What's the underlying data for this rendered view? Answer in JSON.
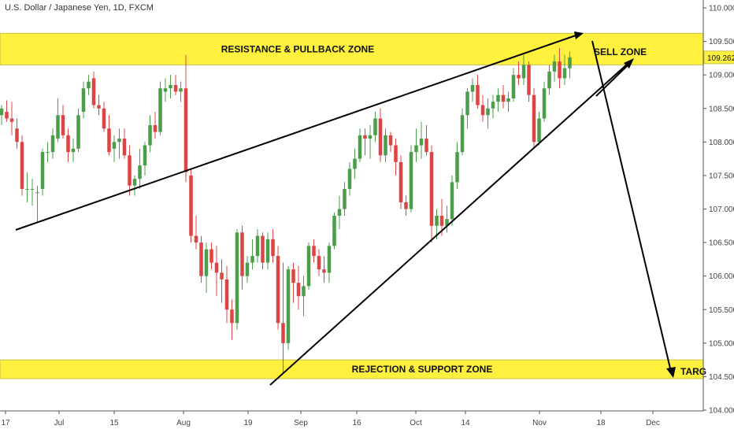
{
  "title": "U.S. Dollar / Japanese Yen, 1D, FXCM",
  "colors": {
    "up": "#4a9e4a",
    "down": "#dd4444",
    "zone": "#fff13d",
    "zone_border": "#c8c04a",
    "line": "#000000",
    "axis": "#555555"
  },
  "annotations": {
    "resistance_zone": "RESISTANCE & PULLBACK ZONE",
    "support_zone": "REJECTION & SUPPORT ZONE",
    "sell_zone": "SELL ZONE",
    "target": "TARG"
  },
  "price_tag": "109.262",
  "chart_data": {
    "type": "candlestick",
    "y_axis_ticks": [
      "110.000",
      "109.500",
      "109.000",
      "108.500",
      "108.000",
      "107.500",
      "107.000",
      "106.500",
      "106.000",
      "105.500",
      "105.000",
      "104.500",
      "104.000"
    ],
    "x_axis_ticks": [
      "17",
      "Jul",
      "15",
      "Aug",
      "19",
      "Sep",
      "16",
      "Oct",
      "14",
      "Nov",
      "18",
      "Dec"
    ],
    "ylim": [
      104.0,
      110.1
    ],
    "zones": {
      "resistance": [
        109.15,
        109.62
      ],
      "support": [
        104.47,
        104.75
      ]
    },
    "last_price": 109.262,
    "candles": [
      [
        108.4,
        108.55,
        108.25,
        108.5
      ],
      [
        108.45,
        108.62,
        108.3,
        108.35
      ],
      [
        108.35,
        108.6,
        108.1,
        108.3
      ],
      [
        108.2,
        108.35,
        107.9,
        108.0
      ],
      [
        108.0,
        108.1,
        107.2,
        107.3
      ],
      [
        107.3,
        107.55,
        107.1,
        107.3
      ],
      [
        107.3,
        107.45,
        107.05,
        107.3
      ],
      [
        107.25,
        107.35,
        106.8,
        107.25
      ],
      [
        107.3,
        107.9,
        107.2,
        107.85
      ],
      [
        107.85,
        108.0,
        107.7,
        107.85
      ],
      [
        107.85,
        108.2,
        107.75,
        108.1
      ],
      [
        108.05,
        108.65,
        108.0,
        108.4
      ],
      [
        108.4,
        108.55,
        108.05,
        108.1
      ],
      [
        108.1,
        108.2,
        107.7,
        107.85
      ],
      [
        107.85,
        108.05,
        107.7,
        107.9
      ],
      [
        107.9,
        108.5,
        107.85,
        108.4
      ],
      [
        108.45,
        108.9,
        108.35,
        108.8
      ],
      [
        108.8,
        109.0,
        108.7,
        108.9
      ],
      [
        108.95,
        109.05,
        108.5,
        108.55
      ],
      [
        108.55,
        108.7,
        108.4,
        108.5
      ],
      [
        108.5,
        108.6,
        108.15,
        108.2
      ],
      [
        108.2,
        108.4,
        107.8,
        107.85
      ],
      [
        107.9,
        108.1,
        107.7,
        108.0
      ],
      [
        108.0,
        108.2,
        107.75,
        108.05
      ],
      [
        108.05,
        108.2,
        107.75,
        107.8
      ],
      [
        107.8,
        107.95,
        107.2,
        107.35
      ],
      [
        107.35,
        107.5,
        107.2,
        107.45
      ],
      [
        107.45,
        107.9,
        107.3,
        107.65
      ],
      [
        107.65,
        108.0,
        107.5,
        107.95
      ],
      [
        107.95,
        108.4,
        107.85,
        108.25
      ],
      [
        108.25,
        108.45,
        108.05,
        108.15
      ],
      [
        108.15,
        108.9,
        108.1,
        108.8
      ],
      [
        108.75,
        108.95,
        108.6,
        108.8
      ],
      [
        108.8,
        109.0,
        108.65,
        108.85
      ],
      [
        108.85,
        109.0,
        108.7,
        108.75
      ],
      [
        108.75,
        108.9,
        108.6,
        108.8
      ],
      [
        108.8,
        109.3,
        107.4,
        107.55
      ],
      [
        107.5,
        107.6,
        106.5,
        106.6
      ],
      [
        106.6,
        106.9,
        106.4,
        106.5
      ],
      [
        106.5,
        106.6,
        105.9,
        106.0
      ],
      [
        106.0,
        106.5,
        105.75,
        106.4
      ],
      [
        106.4,
        106.5,
        106.1,
        106.2
      ],
      [
        106.2,
        106.45,
        105.7,
        106.05
      ],
      [
        106.05,
        106.25,
        105.6,
        105.95
      ],
      [
        105.95,
        106.15,
        105.3,
        105.5
      ],
      [
        105.5,
        105.65,
        105.05,
        105.3
      ],
      [
        105.3,
        106.7,
        105.2,
        106.65
      ],
      [
        106.65,
        106.75,
        105.8,
        106.0
      ],
      [
        106.0,
        106.3,
        105.9,
        106.2
      ],
      [
        106.2,
        106.55,
        106.1,
        106.3
      ],
      [
        106.3,
        106.7,
        106.2,
        106.6
      ],
      [
        106.6,
        106.65,
        106.1,
        106.2
      ],
      [
        106.2,
        106.65,
        106.1,
        106.55
      ],
      [
        106.55,
        106.7,
        106.2,
        106.3
      ],
      [
        106.3,
        106.45,
        105.2,
        105.3
      ],
      [
        105.3,
        106.2,
        104.55,
        105.0
      ],
      [
        105.0,
        106.15,
        104.9,
        106.1
      ],
      [
        106.1,
        106.2,
        105.6,
        105.9
      ],
      [
        105.9,
        106.15,
        105.5,
        105.7
      ],
      [
        105.7,
        106.0,
        105.4,
        105.85
      ],
      [
        105.85,
        106.5,
        105.8,
        106.45
      ],
      [
        106.45,
        106.55,
        106.2,
        106.3
      ],
      [
        106.3,
        106.4,
        106.0,
        106.1
      ],
      [
        106.1,
        106.3,
        105.9,
        106.05
      ],
      [
        106.05,
        106.5,
        105.9,
        106.45
      ],
      [
        106.45,
        106.95,
        106.4,
        106.9
      ],
      [
        106.9,
        107.2,
        106.7,
        107.0
      ],
      [
        107.0,
        107.4,
        106.9,
        107.3
      ],
      [
        107.3,
        107.7,
        107.2,
        107.6
      ],
      [
        107.6,
        107.9,
        107.45,
        107.75
      ],
      [
        107.75,
        108.2,
        107.7,
        108.1
      ],
      [
        108.1,
        108.2,
        107.8,
        108.05
      ],
      [
        108.05,
        108.25,
        107.75,
        108.1
      ],
      [
        108.1,
        108.45,
        108.0,
        108.35
      ],
      [
        108.35,
        108.5,
        107.7,
        107.8
      ],
      [
        107.8,
        108.2,
        107.7,
        108.1
      ],
      [
        108.1,
        108.15,
        107.85,
        107.95
      ],
      [
        107.95,
        108.05,
        107.5,
        107.7
      ],
      [
        107.7,
        107.8,
        107.0,
        107.1
      ],
      [
        107.1,
        107.2,
        106.9,
        107.0
      ],
      [
        107.0,
        107.95,
        106.95,
        107.85
      ],
      [
        107.85,
        108.2,
        107.7,
        107.95
      ],
      [
        107.95,
        108.3,
        107.75,
        108.05
      ],
      [
        108.05,
        108.25,
        107.8,
        107.85
      ],
      [
        107.85,
        107.95,
        106.5,
        106.75
      ],
      [
        106.75,
        107.0,
        106.55,
        106.9
      ],
      [
        106.9,
        107.15,
        106.6,
        106.75
      ],
      [
        106.75,
        107.05,
        106.65,
        106.85
      ],
      [
        106.85,
        107.5,
        106.75,
        107.4
      ],
      [
        107.4,
        108.0,
        107.3,
        107.85
      ],
      [
        107.85,
        108.5,
        107.8,
        108.4
      ],
      [
        108.4,
        108.8,
        108.2,
        108.75
      ],
      [
        108.75,
        108.95,
        108.6,
        108.85
      ],
      [
        108.85,
        109.0,
        108.5,
        108.55
      ],
      [
        108.55,
        108.7,
        108.3,
        108.4
      ],
      [
        108.4,
        108.65,
        108.2,
        108.5
      ],
      [
        108.5,
        108.7,
        108.35,
        108.6
      ],
      [
        108.6,
        108.8,
        108.45,
        108.7
      ],
      [
        108.7,
        108.85,
        108.5,
        108.6
      ],
      [
        108.6,
        108.75,
        108.45,
        108.65
      ],
      [
        108.65,
        109.1,
        108.6,
        109.0
      ],
      [
        109.0,
        109.2,
        108.85,
        108.95
      ],
      [
        108.95,
        109.3,
        108.85,
        109.15
      ],
      [
        109.15,
        109.2,
        108.6,
        108.7
      ],
      [
        108.7,
        108.8,
        107.9,
        108.0
      ],
      [
        108.0,
        108.45,
        107.95,
        108.35
      ],
      [
        108.35,
        108.9,
        108.3,
        108.8
      ],
      [
        108.8,
        109.15,
        108.7,
        109.05
      ],
      [
        109.05,
        109.3,
        108.9,
        109.2
      ],
      [
        109.2,
        109.4,
        108.8,
        108.95
      ],
      [
        108.95,
        109.3,
        108.85,
        109.1
      ],
      [
        109.1,
        109.35,
        108.95,
        109.262
      ]
    ]
  }
}
